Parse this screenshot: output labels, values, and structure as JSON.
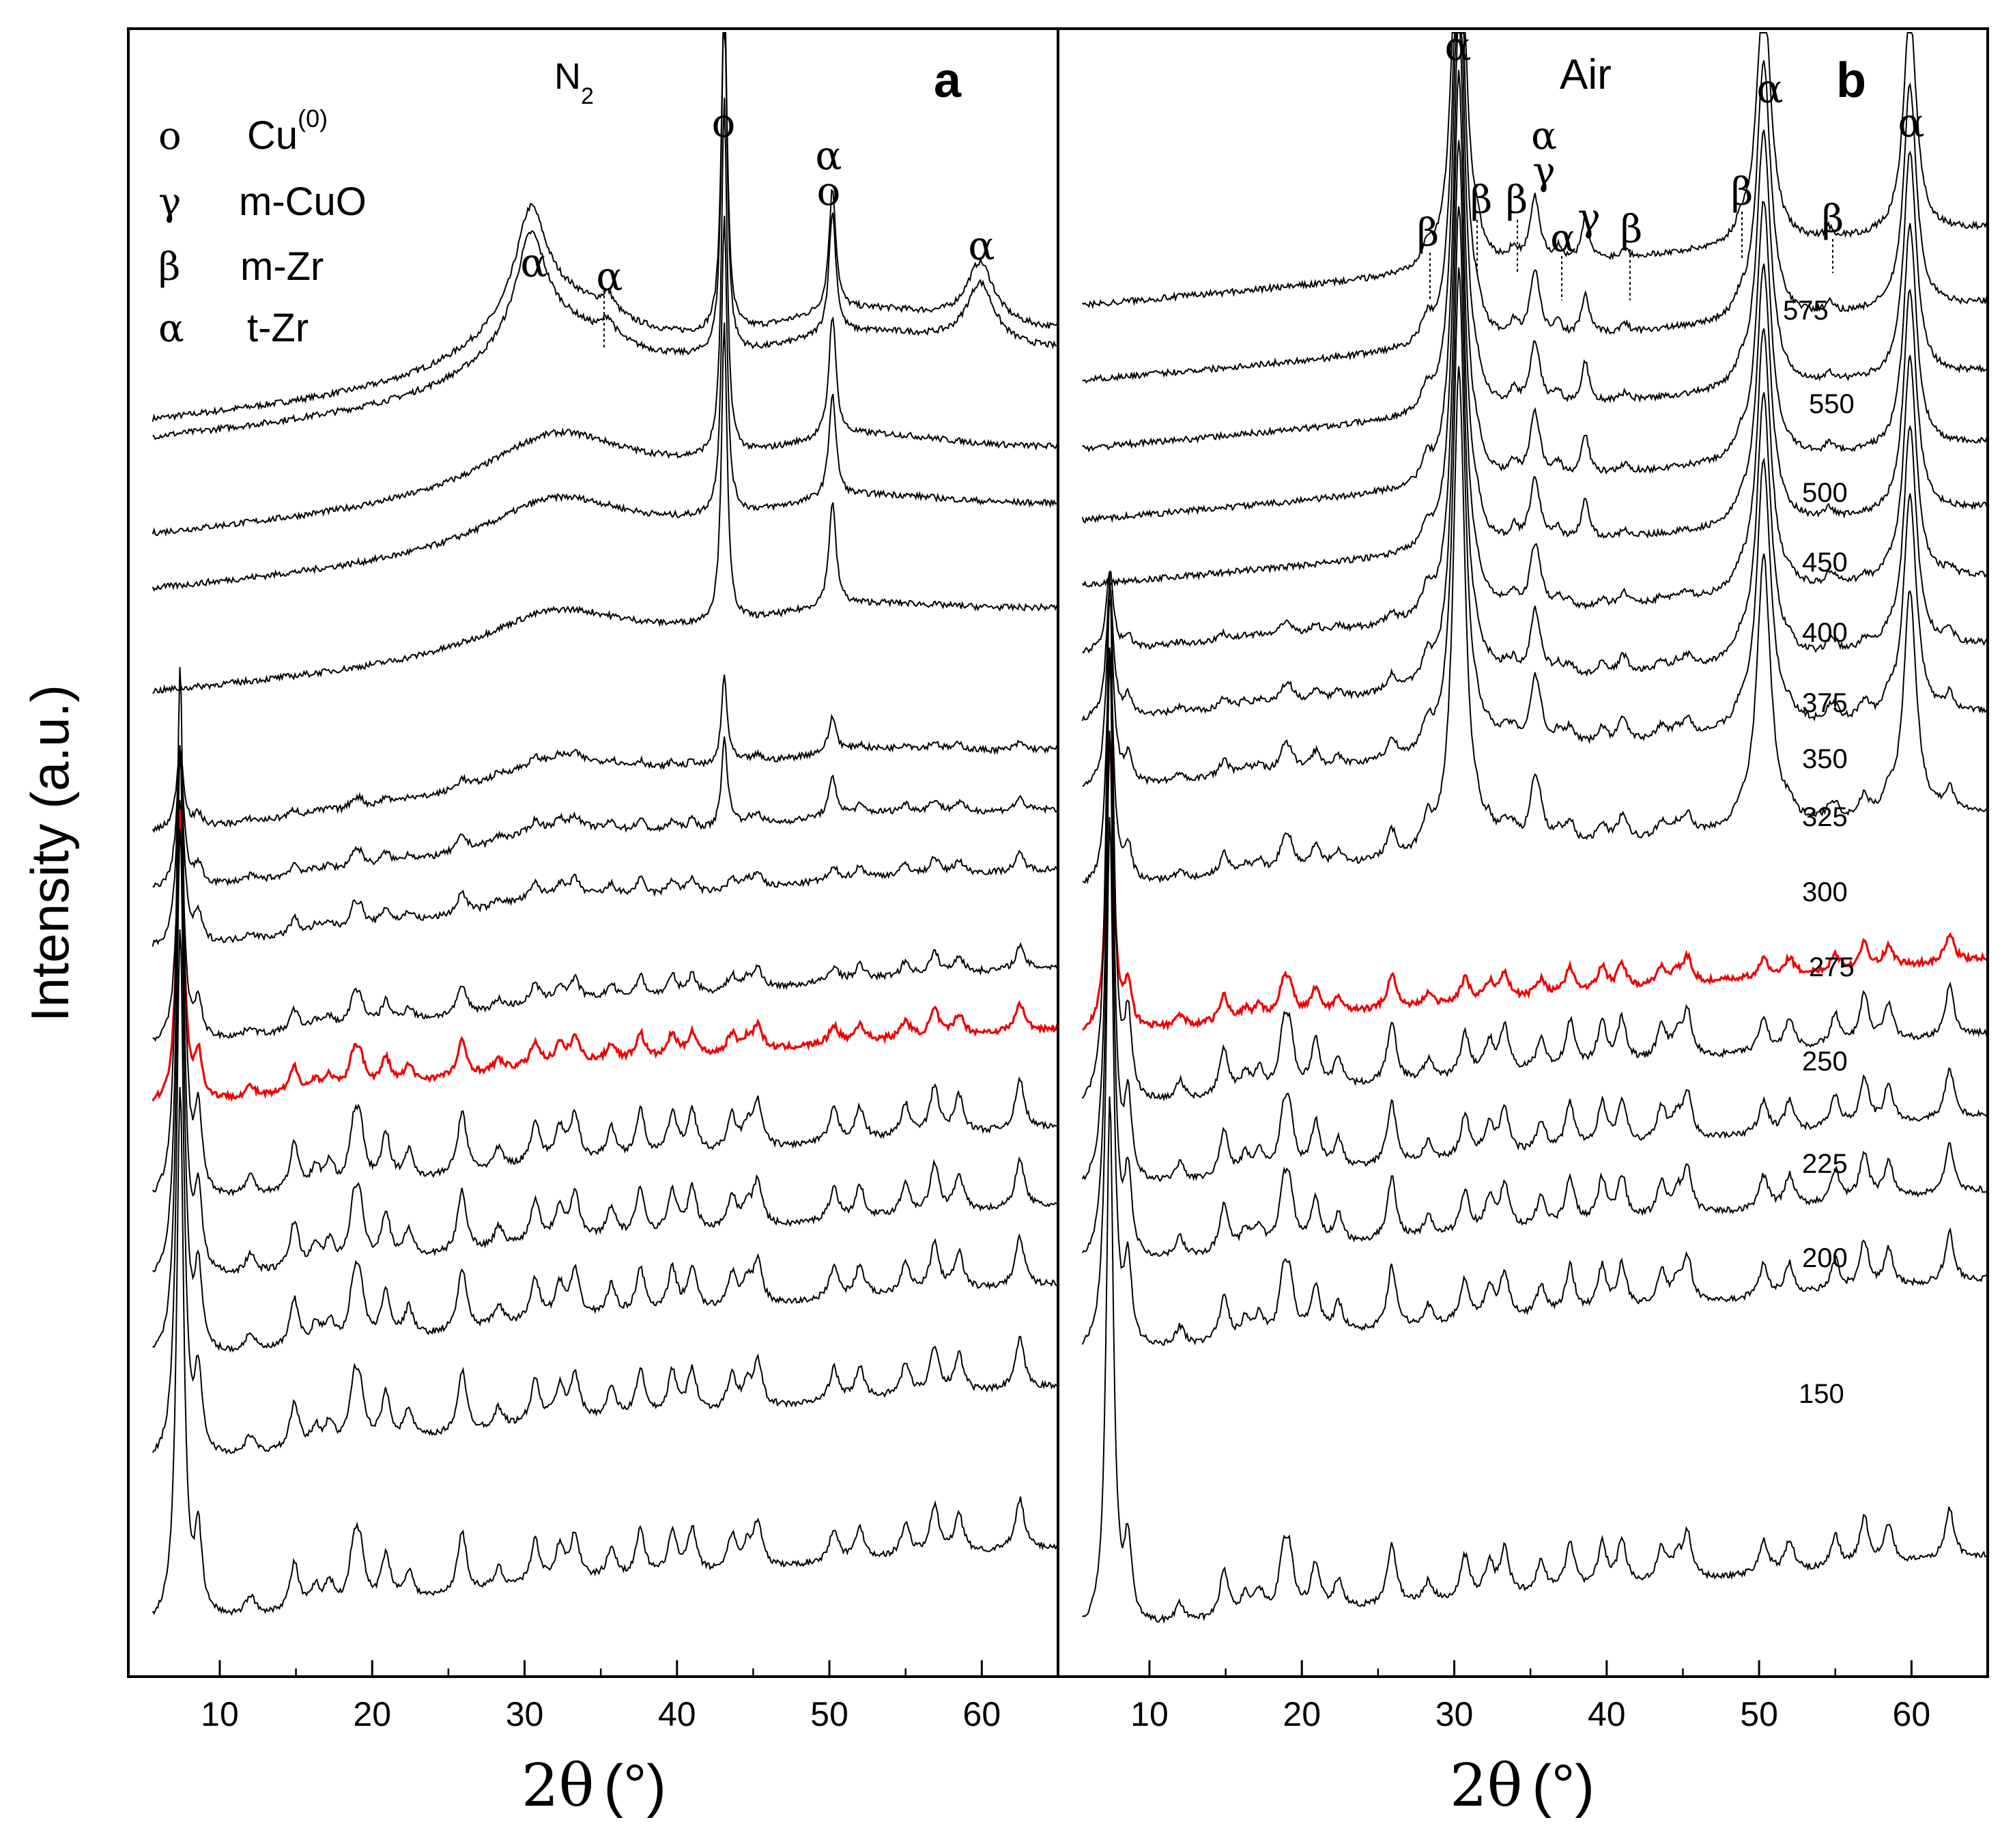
{
  "chart_data": {
    "type": "line",
    "ylabel": "Intensity (a.u.)",
    "xlabel_parts": {
      "theta": "2θ",
      "unit": "(°)"
    },
    "xlim": [
      4,
      65
    ],
    "xticks": [
      10,
      20,
      30,
      40,
      50,
      60
    ],
    "tick_labels": [
      "10",
      "20",
      "30",
      "40",
      "50",
      "60"
    ],
    "panels": [
      {
        "id": "a",
        "letter": "a",
        "atmosphere_main": "N",
        "atmosphere_sub": "2",
        "legend": [
          {
            "symbol": "o",
            "name": "Cu",
            "sup": "(0)"
          },
          {
            "symbol": "γ",
            "name": "m-CuO"
          },
          {
            "symbol": "β",
            "name": "m-Zr"
          },
          {
            "symbol": "α",
            "name": "t-Zr"
          }
        ],
        "peak_labels": [
          {
            "x": 30.5,
            "text": "α"
          },
          {
            "x": 35.5,
            "text": "α",
            "dotted": true
          },
          {
            "x": 43.0,
            "text": "o"
          },
          {
            "x": 50.0,
            "text": "α"
          },
          {
            "x": 50.0,
            "text": "o"
          },
          {
            "x": 60.0,
            "text": "α"
          }
        ],
        "curve_count": 15,
        "highlighted_curve": 5,
        "highlight_color": "#ee0000"
      },
      {
        "id": "b",
        "letter": "b",
        "atmosphere_main": "Air",
        "temperature_labels": [
          "575",
          "550",
          "500",
          "450",
          "400",
          "375",
          "350",
          "325",
          "300",
          "275",
          "250",
          "225",
          "200",
          "150"
        ],
        "peak_labels": [
          {
            "x": 30.3,
            "text": "α"
          },
          {
            "x": 28.2,
            "text": "β",
            "dotted": true
          },
          {
            "x": 31.5,
            "text": "β",
            "dotted": true
          },
          {
            "x": 33.9,
            "text": "β",
            "dotted": true
          },
          {
            "x": 35.3,
            "text": "α"
          },
          {
            "x": 35.3,
            "text": "γ"
          },
          {
            "x": 36.8,
            "text": "α",
            "dotted": true
          },
          {
            "x": 38.6,
            "text": "γ"
          },
          {
            "x": 41.2,
            "text": "β",
            "dotted": true
          },
          {
            "x": 48.8,
            "text": "β",
            "dotted": true
          },
          {
            "x": 50.3,
            "text": "α"
          },
          {
            "x": 54.6,
            "text": "β",
            "dotted": true
          },
          {
            "x": 59.8,
            "text": "α"
          }
        ],
        "curve_count": 15,
        "highlighted_curve": 5,
        "highlight_color": "#ee0000"
      }
    ],
    "phase_peaks": {
      "layered_precursor": [
        7.4,
        8.6,
        12.0,
        14.9,
        16.3,
        17.2,
        18.8,
        19.2,
        20.9,
        22.4,
        25.9,
        28.3,
        30.7,
        32.3,
        33.3,
        35.7,
        37.6,
        39.7,
        41.0,
        43.6,
        44.6,
        45.3,
        50.3,
        52.0,
        55.0,
        56.9,
        58.5,
        62.5
      ],
      "t_zr": [
        30.3,
        35.3,
        50.3,
        60.0
      ],
      "m_zr": [
        28.2,
        31.5,
        33.9,
        41.2,
        48.8,
        54.6
      ],
      "m_cuo": [
        35.5,
        38.6
      ],
      "cu0": [
        43.3,
        50.4
      ]
    }
  }
}
